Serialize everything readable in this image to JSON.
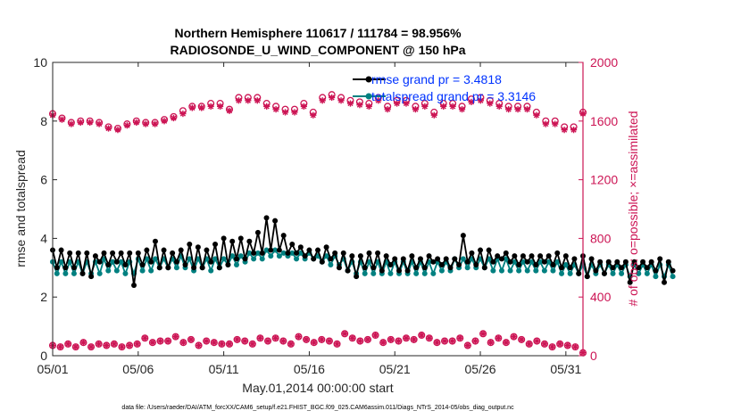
{
  "chart_data": {
    "type": "line",
    "title_line1": "Northern Hemisphere 110617 / 111784 = 98.956%",
    "title_line2": "RADIOSONDE_U_WIND_COMPONENT @ 150 hPa",
    "xlabel": "May.01,2014 00:00:00 start",
    "ylabel_left": "rmse and totalspread",
    "ylabel_right": "# of obs: o=possible; ×=assimilated",
    "footnote": "data file: /Users/raeder/DAI/ATM_forcXX/CAM6_setup/f.e21.FHIST_BGC.f09_025.CAM6assim.011/Diags_NTrS_2014-05/obs_diag_output.nc",
    "xlim": [
      0,
      31
    ],
    "ylim_left": [
      0,
      10
    ],
    "ylim_right": [
      0,
      2000
    ],
    "x_ticks": [
      0,
      5,
      10,
      15,
      20,
      25,
      30
    ],
    "x_tick_labels": [
      "05/01",
      "05/06",
      "05/11",
      "05/16",
      "05/21",
      "05/26",
      "05/31"
    ],
    "y_ticks_left": [
      0,
      2,
      4,
      6,
      8,
      10
    ],
    "y_tick_labels_left": [
      "0",
      "2",
      "4",
      "6",
      "8",
      "10"
    ],
    "y_ticks_right": [
      0,
      400,
      800,
      1200,
      1600,
      2000
    ],
    "y_tick_labels_right": [
      "0",
      "400",
      "800",
      "1200",
      "1600",
      "2000"
    ],
    "legend": [
      {
        "label": "rmse grand pr = 3.4818",
        "color": "#000000"
      },
      {
        "label": "totalspread grand pr = 3.3146",
        "color": "#008080"
      }
    ],
    "colors": {
      "rmse": "#000000",
      "spread": "#008080",
      "obs": "#cc1454",
      "legend_text": "#0033ff",
      "axis": "#262626"
    },
    "time_step_days": 0.25,
    "rmse": [
      3.6,
      3.0,
      3.6,
      3.0,
      3.5,
      3.0,
      3.5,
      2.8,
      3.5,
      2.7,
      3.4,
      3.2,
      3.5,
      3.1,
      3.5,
      3.2,
      3.5,
      3.1,
      3.5,
      2.4,
      3.5,
      3.1,
      3.6,
      3.2,
      3.9,
      3.0,
      3.6,
      3.0,
      3.5,
      3.2,
      3.6,
      3.1,
      3.8,
      3.0,
      3.7,
      3.0,
      3.6,
      3.2,
      3.8,
      3.0,
      4.0,
      3.1,
      3.9,
      3.3,
      4.0,
      3.3,
      3.9,
      3.5,
      4.2,
      3.5,
      4.7,
      3.6,
      4.6,
      3.6,
      4.1,
      3.5,
      3.8,
      3.5,
      3.7,
      3.4,
      3.6,
      3.3,
      3.6,
      3.2,
      3.7,
      3.3,
      3.5,
      3.0,
      3.5,
      2.9,
      3.4,
      2.7,
      3.4,
      3.0,
      3.5,
      3.0,
      3.5,
      2.9,
      3.4,
      3.1,
      3.3,
      2.9,
      3.3,
      2.9,
      3.4,
      3.0,
      3.3,
      3.0,
      3.4,
      3.2,
      3.3,
      3.1,
      3.3,
      3.0,
      3.3,
      3.1,
      4.1,
      3.2,
      3.5,
      3.1,
      3.6,
      3.0,
      3.6,
      3.2,
      3.4,
      3.3,
      3.5,
      3.2,
      3.4,
      3.1,
      3.4,
      3.2,
      3.4,
      3.1,
      3.4,
      3.2,
      3.4,
      3.1,
      3.5,
      3.0,
      3.4,
      3.0,
      3.3,
      2.8,
      3.4,
      2.7,
      3.3,
      2.9,
      3.2,
      2.8,
      3.2,
      3.0,
      3.2,
      3.0,
      3.2,
      2.5,
      3.2,
      3.0,
      3.2,
      3.0,
      3.2,
      2.9,
      3.3,
      2.5,
      3.2,
      2.9
    ],
    "totalspread": [
      3.2,
      2.8,
      3.2,
      2.8,
      3.2,
      2.8,
      3.2,
      2.8,
      3.2,
      2.8,
      3.2,
      2.8,
      3.3,
      2.9,
      3.2,
      2.9,
      3.2,
      2.8,
      3.2,
      2.8,
      3.3,
      2.9,
      3.3,
      2.9,
      3.3,
      3.0,
      3.3,
      3.0,
      3.3,
      3.0,
      3.4,
      3.0,
      3.3,
      2.9,
      3.3,
      3.0,
      3.3,
      2.9,
      3.3,
      3.0,
      3.3,
      3.1,
      3.4,
      3.1,
      3.4,
      3.2,
      3.5,
      3.3,
      3.5,
      3.3,
      3.6,
      3.4,
      3.6,
      3.4,
      3.5,
      3.4,
      3.5,
      3.3,
      3.5,
      3.3,
      3.5,
      3.3,
      3.4,
      3.2,
      3.4,
      3.1,
      3.4,
      3.1,
      3.3,
      2.9,
      3.2,
      2.8,
      3.2,
      2.8,
      3.2,
      2.8,
      3.2,
      2.8,
      3.2,
      2.8,
      3.2,
      2.8,
      3.2,
      2.8,
      3.2,
      2.8,
      3.2,
      2.8,
      3.2,
      2.8,
      3.2,
      2.9,
      3.2,
      2.9,
      3.3,
      3.0,
      3.3,
      3.0,
      3.3,
      3.0,
      3.3,
      3.0,
      3.3,
      2.9,
      3.3,
      2.9,
      3.3,
      2.9,
      3.2,
      2.9,
      3.2,
      2.9,
      3.2,
      2.9,
      3.2,
      2.9,
      3.2,
      2.9,
      3.2,
      2.8,
      3.1,
      2.8,
      3.1,
      2.8,
      3.1,
      2.7,
      3.1,
      2.8,
      3.1,
      2.8,
      3.1,
      2.8,
      3.1,
      2.8,
      3.1,
      2.7,
      3.1,
      2.8,
      3.1,
      2.8,
      3.1,
      2.7,
      3.1,
      2.7,
      3.1,
      2.7
    ],
    "obs_upper_possible": [
      1650,
      1620,
      1590,
      1600,
      1600,
      1590,
      1560,
      1550,
      1580,
      1600,
      1590,
      1590,
      1610,
      1630,
      1670,
      1700,
      1700,
      1720,
      1720,
      1680,
      1760,
      1760,
      1760,
      1720,
      1700,
      1680,
      1680,
      1720,
      1660,
      1760,
      1780,
      1760,
      1740,
      1730,
      1720,
      1760,
      1700,
      1740,
      1740,
      1700,
      1720,
      1660,
      1720,
      1720,
      1700,
      1750,
      1760,
      1740,
      1720,
      1700,
      1700,
      1700,
      1660,
      1600,
      1600,
      1560,
      1560,
      1660
    ],
    "obs_upper_assimilated": [
      1640,
      1610,
      1580,
      1590,
      1590,
      1580,
      1550,
      1540,
      1570,
      1590,
      1580,
      1580,
      1600,
      1620,
      1650,
      1690,
      1690,
      1700,
      1700,
      1670,
      1740,
      1740,
      1740,
      1700,
      1680,
      1660,
      1660,
      1700,
      1640,
      1740,
      1760,
      1740,
      1720,
      1710,
      1700,
      1740,
      1680,
      1720,
      1720,
      1680,
      1700,
      1640,
      1700,
      1700,
      1680,
      1730,
      1740,
      1720,
      1700,
      1680,
      1680,
      1680,
      1640,
      1580,
      1580,
      1540,
      1540,
      1650
    ],
    "obs_lower": [
      70,
      60,
      80,
      60,
      90,
      60,
      80,
      70,
      80,
      60,
      70,
      80,
      120,
      90,
      100,
      100,
      130,
      90,
      110,
      70,
      100,
      90,
      80,
      80,
      110,
      100,
      80,
      120,
      100,
      120,
      100,
      80,
      130,
      110,
      90,
      110,
      100,
      80,
      150,
      120,
      100,
      110,
      140,
      90,
      110,
      100,
      120,
      110,
      140,
      120,
      90,
      100,
      100,
      120,
      70,
      100,
      150,
      90,
      120,
      90,
      130,
      110,
      80,
      100,
      80,
      60,
      80,
      70,
      60,
      20
    ]
  }
}
